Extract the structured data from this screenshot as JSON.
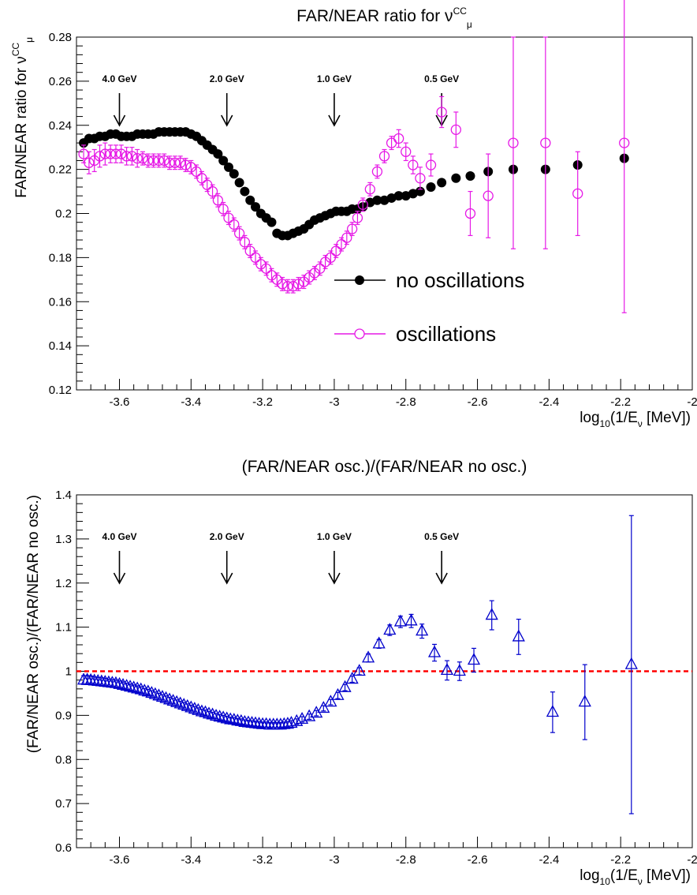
{
  "chart_data": [
    {
      "type": "scatter",
      "title": {
        "main": "FAR/NEAR ratio for ν",
        "sub": "μ",
        "sup": "CC"
      },
      "xlabel": {
        "main": "log",
        "sub": "10",
        "rest": "(1/E",
        "sub2": "ν",
        "tail": " [MeV])"
      },
      "ylabel": {
        "main": "FAR/NEAR ratio for ν",
        "sub": "μ",
        "sup": "CC"
      },
      "xlim": [
        -3.72,
        -2.0
      ],
      "ylim": [
        0.12,
        0.28
      ],
      "xticks": [
        -3.6,
        -3.4,
        -3.2,
        -3.0,
        -2.8,
        -2.6,
        -2.4,
        -2.2,
        -2.0
      ],
      "xtick_labels": [
        "-3.6",
        "-3.4",
        "-3.2",
        "-3",
        "-2.8",
        "-2.6",
        "-2.4",
        "-2.2",
        "-2"
      ],
      "yticks": [
        0.12,
        0.14,
        0.16,
        0.18,
        0.2,
        0.22,
        0.24,
        0.26,
        0.28
      ],
      "ytick_labels": [
        "0.12",
        "0.14",
        "0.16",
        "0.18",
        "0.2",
        "0.22",
        "0.24",
        "0.26",
        "0.28"
      ],
      "grid": false,
      "legend": {
        "placement": "center-right",
        "entries": [
          "no oscillations",
          "oscillations"
        ]
      },
      "annotations": [
        {
          "label": "4.0 GeV",
          "x": -3.6
        },
        {
          "label": "2.0 GeV",
          "x": -3.3
        },
        {
          "label": "1.0 GeV",
          "x": -3.0
        },
        {
          "label": "0.5 GeV",
          "x": -2.7
        }
      ],
      "series": [
        {
          "name": "no oscillations",
          "color": "#000000",
          "marker": "filled-circle",
          "x": [
            -3.7,
            -3.685,
            -3.67,
            -3.655,
            -3.64,
            -3.625,
            -3.61,
            -3.595,
            -3.58,
            -3.565,
            -3.55,
            -3.535,
            -3.52,
            -3.505,
            -3.49,
            -3.475,
            -3.46,
            -3.445,
            -3.43,
            -3.415,
            -3.4,
            -3.385,
            -3.37,
            -3.355,
            -3.34,
            -3.325,
            -3.31,
            -3.295,
            -3.28,
            -3.265,
            -3.25,
            -3.235,
            -3.22,
            -3.205,
            -3.19,
            -3.175,
            -3.16,
            -3.145,
            -3.13,
            -3.115,
            -3.1,
            -3.085,
            -3.07,
            -3.055,
            -3.04,
            -3.025,
            -3.01,
            -2.995,
            -2.98,
            -2.965,
            -2.95,
            -2.935,
            -2.92,
            -2.9,
            -2.88,
            -2.86,
            -2.84,
            -2.82,
            -2.8,
            -2.78,
            -2.76,
            -2.73,
            -2.7,
            -2.66,
            -2.62,
            -2.57,
            -2.5,
            -2.41,
            -2.32,
            -2.19
          ],
          "y": [
            0.232,
            0.234,
            0.234,
            0.235,
            0.235,
            0.236,
            0.236,
            0.235,
            0.235,
            0.235,
            0.236,
            0.236,
            0.236,
            0.236,
            0.237,
            0.237,
            0.237,
            0.237,
            0.237,
            0.237,
            0.236,
            0.235,
            0.233,
            0.231,
            0.229,
            0.227,
            0.224,
            0.221,
            0.218,
            0.214,
            0.21,
            0.206,
            0.203,
            0.2,
            0.198,
            0.196,
            0.191,
            0.19,
            0.19,
            0.191,
            0.192,
            0.193,
            0.195,
            0.197,
            0.198,
            0.199,
            0.2,
            0.201,
            0.201,
            0.201,
            0.202,
            0.202,
            0.203,
            0.205,
            0.206,
            0.206,
            0.207,
            0.208,
            0.208,
            0.209,
            0.21,
            0.212,
            0.214,
            0.216,
            0.217,
            0.219,
            0.22,
            0.22,
            0.222,
            0.225
          ]
        },
        {
          "name": "oscillations",
          "color": "#e619e6",
          "marker": "open-circle",
          "x": [
            -3.7,
            -3.685,
            -3.67,
            -3.655,
            -3.64,
            -3.625,
            -3.61,
            -3.595,
            -3.58,
            -3.565,
            -3.55,
            -3.535,
            -3.52,
            -3.505,
            -3.49,
            -3.475,
            -3.46,
            -3.445,
            -3.43,
            -3.415,
            -3.4,
            -3.385,
            -3.37,
            -3.355,
            -3.34,
            -3.325,
            -3.31,
            -3.295,
            -3.28,
            -3.265,
            -3.25,
            -3.235,
            -3.22,
            -3.205,
            -3.19,
            -3.175,
            -3.16,
            -3.145,
            -3.13,
            -3.115,
            -3.1,
            -3.085,
            -3.07,
            -3.055,
            -3.04,
            -3.025,
            -3.01,
            -2.995,
            -2.98,
            -2.965,
            -2.95,
            -2.935,
            -2.92,
            -2.9,
            -2.88,
            -2.86,
            -2.84,
            -2.82,
            -2.8,
            -2.78,
            -2.76,
            -2.73,
            -2.7,
            -2.66,
            -2.62,
            -2.57,
            -2.5,
            -2.41,
            -2.32,
            -2.19
          ],
          "y": [
            0.227,
            0.223,
            0.224,
            0.226,
            0.227,
            0.227,
            0.227,
            0.227,
            0.226,
            0.226,
            0.225,
            0.225,
            0.224,
            0.224,
            0.224,
            0.224,
            0.223,
            0.223,
            0.223,
            0.222,
            0.221,
            0.219,
            0.216,
            0.213,
            0.21,
            0.206,
            0.202,
            0.198,
            0.195,
            0.191,
            0.187,
            0.183,
            0.18,
            0.177,
            0.175,
            0.172,
            0.17,
            0.168,
            0.167,
            0.167,
            0.168,
            0.169,
            0.171,
            0.173,
            0.175,
            0.178,
            0.18,
            0.183,
            0.186,
            0.189,
            0.193,
            0.198,
            0.204,
            0.211,
            0.219,
            0.226,
            0.232,
            0.234,
            0.228,
            0.222,
            0.216,
            0.222,
            0.246,
            0.238,
            0.2,
            0.208,
            0.232,
            0.232,
            0.209,
            0.232
          ],
          "err": [
            0.004,
            0.005,
            0.005,
            0.005,
            0.005,
            0.004,
            0.004,
            0.004,
            0.004,
            0.004,
            0.004,
            0.003,
            0.003,
            0.003,
            0.003,
            0.003,
            0.003,
            0.003,
            0.003,
            0.003,
            0.003,
            0.003,
            0.003,
            0.003,
            0.003,
            0.003,
            0.003,
            0.003,
            0.003,
            0.003,
            0.003,
            0.003,
            0.003,
            0.003,
            0.003,
            0.003,
            0.003,
            0.003,
            0.003,
            0.003,
            0.003,
            0.003,
            0.003,
            0.003,
            0.003,
            0.003,
            0.003,
            0.003,
            0.003,
            0.003,
            0.003,
            0.003,
            0.003,
            0.003,
            0.003,
            0.003,
            0.003,
            0.004,
            0.004,
            0.004,
            0.005,
            0.005,
            0.007,
            0.008,
            0.01,
            0.019,
            0.048,
            0.048,
            0.019,
            0.077
          ]
        }
      ]
    },
    {
      "type": "scatter",
      "title": {
        "main": "(FAR/NEAR osc.)/(FAR/NEAR no osc.)"
      },
      "xlabel": {
        "main": "log",
        "sub": "10",
        "rest": "(1/E",
        "sub2": "ν",
        "tail": " [MeV])"
      },
      "ylabel": {
        "main": "(FAR/NEAR osc.)/(FAR/NEAR no osc.)"
      },
      "xlim": [
        -3.72,
        -2.0
      ],
      "ylim": [
        0.6,
        1.4
      ],
      "xticks": [
        -3.6,
        -3.4,
        -3.2,
        -3.0,
        -2.8,
        -2.6,
        -2.4,
        -2.2,
        -2.0
      ],
      "xtick_labels": [
        "-3.6",
        "-3.4",
        "-3.2",
        "-3",
        "-2.8",
        "-2.6",
        "-2.4",
        "-2.2",
        "-2"
      ],
      "yticks": [
        0.6,
        0.7,
        0.8,
        0.9,
        1.0,
        1.1,
        1.2,
        1.3,
        1.4
      ],
      "ytick_labels": [
        "0.6",
        "0.7",
        "0.8",
        "0.9",
        "1",
        "1.1",
        "1.2",
        "1.3",
        "1.4"
      ],
      "grid": false,
      "reference_line": {
        "y": 1.0,
        "color": "#ff0000",
        "style": "dashed"
      },
      "annotations": [
        {
          "label": "4.0 GeV",
          "x": -3.6
        },
        {
          "label": "2.0 GeV",
          "x": -3.3
        },
        {
          "label": "1.0 GeV",
          "x": -3.0
        },
        {
          "label": "0.5 GeV",
          "x": -2.7
        }
      ],
      "series": [
        {
          "color": "#0000cc",
          "marker": "open-triangle",
          "x": [
            -3.7,
            -3.69,
            -3.68,
            -3.67,
            -3.66,
            -3.65,
            -3.64,
            -3.63,
            -3.62,
            -3.61,
            -3.6,
            -3.59,
            -3.58,
            -3.57,
            -3.56,
            -3.55,
            -3.54,
            -3.53,
            -3.52,
            -3.51,
            -3.5,
            -3.49,
            -3.48,
            -3.47,
            -3.46,
            -3.45,
            -3.44,
            -3.43,
            -3.42,
            -3.41,
            -3.4,
            -3.39,
            -3.38,
            -3.37,
            -3.36,
            -3.35,
            -3.34,
            -3.33,
            -3.32,
            -3.31,
            -3.3,
            -3.29,
            -3.28,
            -3.27,
            -3.26,
            -3.25,
            -3.24,
            -3.23,
            -3.22,
            -3.21,
            -3.2,
            -3.19,
            -3.18,
            -3.17,
            -3.16,
            -3.15,
            -3.14,
            -3.13,
            -3.12,
            -3.105,
            -3.09,
            -3.07,
            -3.05,
            -3.03,
            -3.01,
            -2.99,
            -2.97,
            -2.95,
            -2.93,
            -2.905,
            -2.875,
            -2.845,
            -2.815,
            -2.785,
            -2.755,
            -2.72,
            -2.685,
            -2.65,
            -2.61,
            -2.56,
            -2.485,
            -2.39,
            -2.3,
            -2.17
          ],
          "y": [
            0.98,
            0.98,
            0.979,
            0.978,
            0.977,
            0.976,
            0.975,
            0.974,
            0.973,
            0.972,
            0.97,
            0.968,
            0.966,
            0.964,
            0.962,
            0.96,
            0.958,
            0.955,
            0.953,
            0.95,
            0.947,
            0.944,
            0.941,
            0.938,
            0.935,
            0.932,
            0.929,
            0.926,
            0.923,
            0.92,
            0.917,
            0.914,
            0.911,
            0.908,
            0.906,
            0.903,
            0.901,
            0.898,
            0.896,
            0.894,
            0.892,
            0.89,
            0.889,
            0.887,
            0.886,
            0.884,
            0.883,
            0.882,
            0.881,
            0.88,
            0.879,
            0.879,
            0.878,
            0.878,
            0.878,
            0.878,
            0.879,
            0.88,
            0.882,
            0.886,
            0.891,
            0.897,
            0.905,
            0.916,
            0.93,
            0.945,
            0.963,
            0.982,
            1.0,
            1.03,
            1.062,
            1.093,
            1.112,
            1.114,
            1.091,
            1.042,
            1.002,
            1.0,
            1.025,
            1.127,
            1.078,
            0.907,
            0.93,
            1.015
          ],
          "err": [
            0.01,
            0.01,
            0.01,
            0.009,
            0.009,
            0.009,
            0.009,
            0.008,
            0.008,
            0.008,
            0.008,
            0.008,
            0.007,
            0.007,
            0.007,
            0.007,
            0.007,
            0.006,
            0.006,
            0.006,
            0.006,
            0.006,
            0.006,
            0.006,
            0.006,
            0.006,
            0.006,
            0.006,
            0.006,
            0.006,
            0.006,
            0.006,
            0.006,
            0.006,
            0.006,
            0.006,
            0.006,
            0.006,
            0.006,
            0.006,
            0.006,
            0.006,
            0.006,
            0.006,
            0.006,
            0.006,
            0.006,
            0.006,
            0.006,
            0.006,
            0.006,
            0.006,
            0.006,
            0.006,
            0.006,
            0.006,
            0.006,
            0.006,
            0.006,
            0.006,
            0.006,
            0.006,
            0.006,
            0.006,
            0.006,
            0.007,
            0.007,
            0.007,
            0.008,
            0.009,
            0.01,
            0.012,
            0.013,
            0.015,
            0.016,
            0.019,
            0.022,
            0.021,
            0.027,
            0.033,
            0.04,
            0.046,
            0.085,
            0.338
          ]
        }
      ]
    }
  ]
}
